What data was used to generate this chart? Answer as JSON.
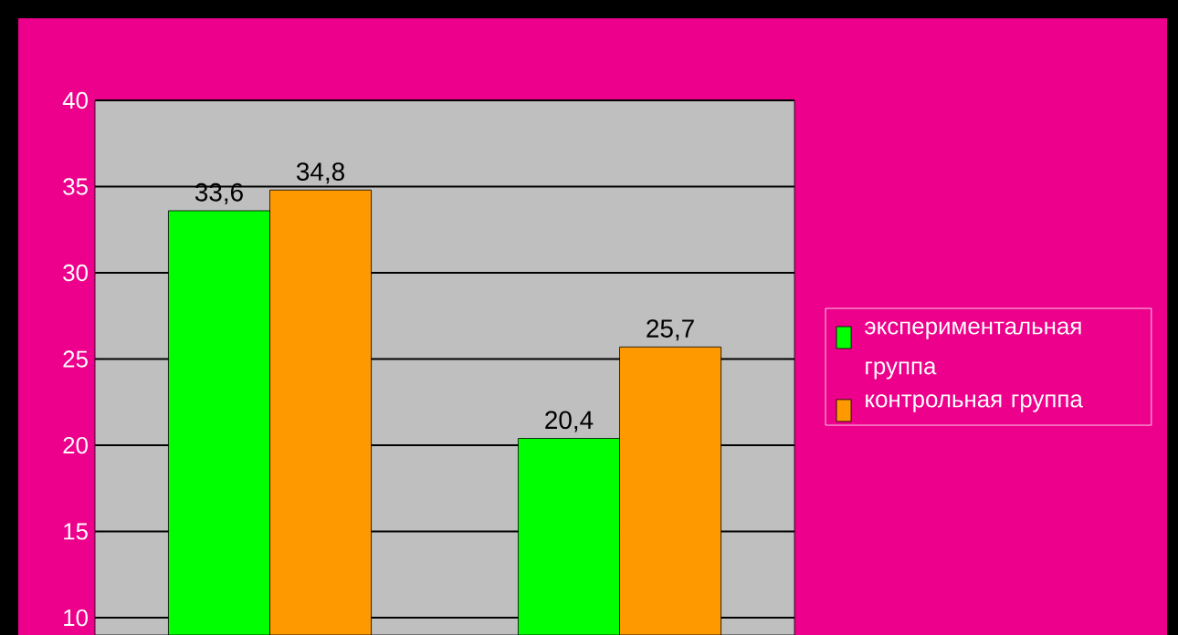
{
  "chart_data": {
    "type": "bar",
    "categories": [
      null,
      null
    ],
    "series": [
      {
        "name": "экспериментальная группа",
        "color": "#00ff00",
        "values": [
          33.6,
          20.4
        ],
        "value_labels": [
          "33,6",
          "20,4"
        ]
      },
      {
        "name": "контрольная группа",
        "color": "#ff9900",
        "values": [
          34.8,
          25.7
        ],
        "value_labels": [
          "34,8",
          "25,7"
        ]
      }
    ],
    "ylim": [
      9,
      40
    ],
    "yticks": [
      10,
      15,
      20,
      25,
      30,
      35,
      40
    ],
    "grid": "y",
    "legend": "right"
  }
}
